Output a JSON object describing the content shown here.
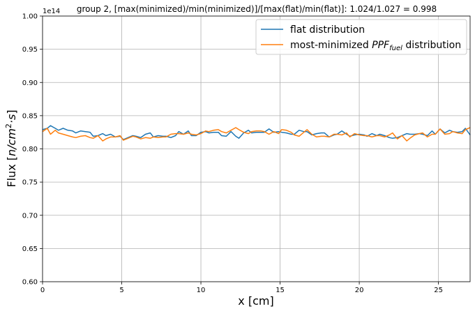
{
  "chart_data": {
    "type": "line",
    "title": "group 2, [max(minimized)/min(minimized)]/[max(flat)/min(flat)]: 1.024/1.027 = 0.998",
    "xlabel": "x [cm]",
    "ylabel_prefix": "Flux [",
    "ylabel_math": "n/cm",
    "ylabel_exp": "2",
    "ylabel_math2": "·s",
    "ylabel_suffix": "]",
    "y_offset_label": "1e14",
    "xlim": [
      0,
      27.0
    ],
    "ylim": [
      0.6,
      1.0
    ],
    "x_ticks": [
      0,
      5,
      10,
      15,
      20,
      25
    ],
    "x_tick_labels": [
      "0",
      "5",
      "10",
      "15",
      "20",
      "25"
    ],
    "y_ticks": [
      0.6,
      0.65,
      0.7,
      0.75,
      0.8,
      0.85,
      0.9,
      0.95,
      1.0
    ],
    "y_tick_labels": [
      "0.60",
      "0.65",
      "0.70",
      "0.75",
      "0.80",
      "0.85",
      "0.90",
      "0.95",
      "1.00"
    ],
    "grid": true,
    "legend_position": "upper-right",
    "x": [
      0.0,
      0.3,
      0.5,
      0.8,
      1.0,
      1.3,
      1.6,
      1.9,
      2.1,
      2.4,
      2.7,
      3.0,
      3.2,
      3.5,
      3.8,
      4.0,
      4.3,
      4.6,
      4.9,
      5.1,
      5.4,
      5.7,
      5.9,
      6.2,
      6.5,
      6.8,
      7.0,
      7.3,
      7.6,
      7.8,
      8.1,
      8.4,
      8.6,
      8.9,
      9.2,
      9.4,
      9.7,
      10.0,
      10.3,
      10.5,
      10.8,
      11.1,
      11.3,
      11.6,
      11.9,
      12.2,
      12.4,
      12.7,
      13.0,
      13.2,
      13.5,
      13.8,
      14.0,
      14.3,
      14.6,
      14.9,
      15.1,
      15.4,
      15.7,
      15.9,
      16.2,
      16.5,
      16.7,
      17.0,
      17.3,
      17.6,
      17.8,
      18.1,
      18.4,
      18.6,
      18.9,
      19.2,
      19.4,
      19.7,
      20.0,
      20.3,
      20.5,
      20.8,
      21.1,
      21.3,
      21.6,
      21.9,
      22.1,
      22.4,
      22.7,
      23.0,
      23.2,
      23.5,
      23.8,
      24.0,
      24.3,
      24.6,
      24.8,
      25.1,
      25.4,
      25.7,
      25.9,
      26.2,
      26.5,
      26.7,
      27.0
    ],
    "series": [
      {
        "name": "flat distribution",
        "color": "#1f77b4",
        "values": [
          0.829,
          0.831,
          0.835,
          0.831,
          0.828,
          0.831,
          0.828,
          0.827,
          0.824,
          0.827,
          0.826,
          0.825,
          0.819,
          0.82,
          0.823,
          0.82,
          0.822,
          0.818,
          0.819,
          0.814,
          0.817,
          0.82,
          0.819,
          0.817,
          0.822,
          0.824,
          0.818,
          0.82,
          0.819,
          0.819,
          0.817,
          0.82,
          0.826,
          0.822,
          0.827,
          0.82,
          0.82,
          0.825,
          0.826,
          0.824,
          0.825,
          0.825,
          0.82,
          0.819,
          0.826,
          0.819,
          0.816,
          0.824,
          0.828,
          0.824,
          0.825,
          0.825,
          0.825,
          0.83,
          0.825,
          0.826,
          0.825,
          0.824,
          0.822,
          0.822,
          0.828,
          0.826,
          0.826,
          0.821,
          0.823,
          0.824,
          0.824,
          0.818,
          0.821,
          0.822,
          0.827,
          0.822,
          0.819,
          0.821,
          0.822,
          0.821,
          0.819,
          0.823,
          0.82,
          0.822,
          0.82,
          0.817,
          0.816,
          0.817,
          0.82,
          0.823,
          0.822,
          0.822,
          0.823,
          0.822,
          0.82,
          0.827,
          0.822,
          0.83,
          0.824,
          0.828,
          0.826,
          0.825,
          0.826,
          0.831,
          0.821
        ]
      },
      {
        "name": "most-minimized PPF_fuel distribution",
        "color": "#ff7f0e",
        "values": [
          0.826,
          0.831,
          0.822,
          0.828,
          0.824,
          0.822,
          0.82,
          0.818,
          0.817,
          0.819,
          0.82,
          0.817,
          0.816,
          0.82,
          0.812,
          0.815,
          0.818,
          0.818,
          0.82,
          0.813,
          0.816,
          0.819,
          0.818,
          0.815,
          0.817,
          0.816,
          0.818,
          0.817,
          0.818,
          0.818,
          0.822,
          0.823,
          0.823,
          0.822,
          0.824,
          0.822,
          0.821,
          0.823,
          0.827,
          0.826,
          0.828,
          0.829,
          0.826,
          0.824,
          0.828,
          0.832,
          0.829,
          0.825,
          0.823,
          0.826,
          0.827,
          0.827,
          0.826,
          0.822,
          0.826,
          0.823,
          0.829,
          0.828,
          0.825,
          0.821,
          0.819,
          0.825,
          0.829,
          0.822,
          0.818,
          0.819,
          0.819,
          0.818,
          0.822,
          0.822,
          0.821,
          0.824,
          0.818,
          0.823,
          0.821,
          0.82,
          0.82,
          0.818,
          0.82,
          0.82,
          0.818,
          0.821,
          0.824,
          0.815,
          0.82,
          0.812,
          0.816,
          0.821,
          0.823,
          0.824,
          0.818,
          0.822,
          0.822,
          0.83,
          0.822,
          0.823,
          0.826,
          0.824,
          0.823,
          0.829,
          0.832
        ]
      }
    ]
  }
}
